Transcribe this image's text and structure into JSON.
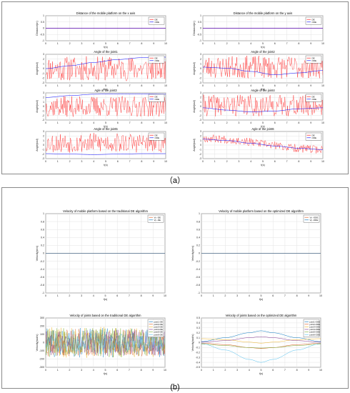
{
  "captions": {
    "a": "（a）",
    "b": "(b)"
  },
  "colors": {
    "de": "#ff0000",
    "ode": "#0000ff",
    "joint_colors": [
      "#0072bd",
      "#d95319",
      "#edb120",
      "#7e2f8e",
      "#77ac30",
      "#4dbeee"
    ]
  },
  "chart_data": [
    {
      "type": "line",
      "title": "Distance of the mobile platform on the x axis",
      "xlabel": "t(s)",
      "ylabel": "Distance(m)",
      "xlim": [
        0,
        10
      ],
      "ylim": [
        -1,
        1
      ],
      "legend_placement": "top-right",
      "grid": true,
      "x_ticks": [
        "0",
        "1",
        "2",
        "3",
        "4",
        "5",
        "6",
        "7",
        "8",
        "9",
        "10"
      ],
      "y_ticks": [
        "-1",
        "-0.5",
        "0",
        "0.5",
        "1"
      ],
      "series": [
        {
          "name": "DE",
          "kind": "const",
          "value": 0
        },
        {
          "name": "ODE",
          "kind": "const",
          "value": 0
        }
      ]
    },
    {
      "type": "line",
      "title": "Distance of the mobile platform on the y axis",
      "xlabel": "t(s)",
      "ylabel": "Distance(m)",
      "xlim": [
        0,
        10
      ],
      "ylim": [
        -1,
        1
      ],
      "legend_placement": "top-right",
      "grid": true,
      "x_ticks": [
        "0",
        "1",
        "2",
        "3",
        "4",
        "5",
        "6",
        "7",
        "8",
        "9",
        "10"
      ],
      "y_ticks": [
        "-1",
        "-0.5",
        "0",
        "0.5",
        "1"
      ],
      "series": [
        {
          "name": "DE",
          "kind": "const",
          "value": 0
        },
        {
          "name": "ODE",
          "kind": "const",
          "value": 0
        }
      ]
    },
    {
      "type": "line",
      "title": "Angle of the joint1",
      "xlabel": "t(s)",
      "ylabel": "Angle(rad)",
      "xlim": [
        0,
        10
      ],
      "ylim": [
        -3,
        3
      ],
      "legend_placement": "top-right",
      "grid": true,
      "x_ticks": [
        "0",
        "1",
        "2",
        "3",
        "4",
        "5",
        "6",
        "7",
        "8",
        "9",
        "10"
      ],
      "y_ticks": [
        "-3",
        "-2",
        "-1",
        "0",
        "1",
        "2",
        "3"
      ],
      "series": [
        {
          "name": "DE",
          "kind": "noise",
          "center": 0,
          "amp": 2.6,
          "seed": 11
        },
        {
          "name": "ODE",
          "kind": "smooth",
          "x": [
            0,
            2,
            4,
            6,
            8,
            10
          ],
          "y": [
            0,
            0.6,
            1.3,
            1.9,
            2.3,
            2.4
          ]
        }
      ]
    },
    {
      "type": "line",
      "title": "Angle of the joint2",
      "xlabel": "t(s)",
      "ylabel": "Angle(rad)",
      "xlim": [
        0,
        10
      ],
      "ylim": [
        -3,
        3
      ],
      "legend_placement": "top-right",
      "grid": true,
      "x_ticks": [
        "0",
        "1",
        "2",
        "3",
        "4",
        "5",
        "6",
        "7",
        "8",
        "9",
        "10"
      ],
      "y_ticks": [
        "-3",
        "-2",
        "-1",
        "0",
        "1",
        "2",
        "3"
      ],
      "series": [
        {
          "name": "DE",
          "kind": "noise",
          "center": 0.3,
          "amp": 2.4,
          "seed": 23
        },
        {
          "name": "ODE",
          "kind": "smooth",
          "x": [
            0,
            2,
            4,
            6,
            8,
            10
          ],
          "y": [
            0.3,
            0.1,
            -0.6,
            -1.3,
            -0.9,
            -0.4
          ]
        }
      ]
    },
    {
      "type": "line",
      "title": "Agle of the joint3",
      "xlabel": "t(s)",
      "ylabel": "Angle(rad)",
      "xlim": [
        0,
        10
      ],
      "ylim": [
        -3,
        3
      ],
      "legend_placement": "top-right",
      "grid": true,
      "x_ticks": [
        "0",
        "1",
        "2",
        "3",
        "4",
        "5",
        "6",
        "7",
        "8",
        "9",
        "10"
      ],
      "y_ticks": [
        "-3",
        "-2",
        "-1",
        "0",
        "1",
        "2",
        "3"
      ],
      "series": [
        {
          "name": "DE",
          "kind": "noise",
          "center": 0,
          "amp": 2.3,
          "seed": 37
        },
        {
          "name": "ODE",
          "kind": "smooth",
          "x": [
            0,
            2,
            4,
            6,
            8,
            10
          ],
          "y": [
            2.0,
            2.4,
            2.7,
            2.8,
            2.8,
            2.7
          ]
        }
      ]
    },
    {
      "type": "line",
      "title": "Angle of the joint4",
      "xlabel": "t(s)",
      "ylabel": "Angle(rad)",
      "xlim": [
        0,
        10
      ],
      "ylim": [
        -3,
        3
      ],
      "legend_placement": "top-right",
      "grid": true,
      "x_ticks": [
        "0",
        "1",
        "2",
        "3",
        "4",
        "5",
        "6",
        "7",
        "8",
        "9",
        "10"
      ],
      "y_ticks": [
        "-3",
        "-2",
        "-1",
        "0",
        "1",
        "2",
        "3"
      ],
      "series": [
        {
          "name": "DE",
          "kind": "noise",
          "center": 0.2,
          "amp": 2.4,
          "seed": 41
        },
        {
          "name": "ODE",
          "kind": "smooth",
          "x": [
            0,
            2,
            4,
            6,
            8,
            10
          ],
          "y": [
            -0.3,
            -0.8,
            -1.2,
            -1.0,
            -0.5,
            -0.3
          ]
        }
      ]
    },
    {
      "type": "line",
      "title": "Angle of the joint5",
      "xlabel": "t(s)",
      "ylabel": "Angle(rad)",
      "xlim": [
        0,
        10
      ],
      "ylim": [
        -3,
        3
      ],
      "legend_placement": "top-right",
      "grid": true,
      "x_ticks": [
        "0",
        "1",
        "2",
        "3",
        "4",
        "5",
        "6",
        "7",
        "8",
        "9",
        "10"
      ],
      "y_ticks": [
        "-3",
        "-2",
        "-1",
        "0",
        "1",
        "2",
        "3"
      ],
      "series": [
        {
          "name": "DE",
          "kind": "noise",
          "center": 0.5,
          "amp": 2.2,
          "seed": 53
        },
        {
          "name": "ODE",
          "kind": "smooth",
          "x": [
            0,
            2,
            4,
            6,
            8,
            10
          ],
          "y": [
            -1.9,
            -2.0,
            -2.1,
            -2.0,
            -1.9,
            -1.9
          ]
        }
      ]
    },
    {
      "type": "line",
      "title": "Agle of the joint6",
      "xlabel": "t(s)",
      "ylabel": "Angle(rad)",
      "xlim": [
        0,
        10
      ],
      "ylim": [
        -3,
        3
      ],
      "legend_placement": "top-right",
      "grid": true,
      "x_ticks": [
        "0",
        "1",
        "2",
        "3",
        "4",
        "5",
        "6",
        "7",
        "8",
        "9",
        "10"
      ],
      "y_ticks": [
        "-3",
        "-2",
        "-1",
        "0",
        "1",
        "2",
        "3"
      ],
      "series": [
        {
          "name": "DE",
          "kind": "trend-noise",
          "x": [
            0,
            10
          ],
          "y": [
            1.5,
            -1.0
          ],
          "amp": 0.9,
          "seed": 67
        },
        {
          "name": "ODE",
          "kind": "smooth",
          "x": [
            0,
            2,
            4,
            6,
            8,
            10
          ],
          "y": [
            1.3,
            1.0,
            0.4,
            -0.2,
            -0.7,
            -1.0
          ]
        }
      ]
    },
    {
      "type": "line",
      "title": "Velocity of  mobile platform based on the traditional DE algorithm",
      "xlabel": "t(s)",
      "ylabel": "Velocity(m/s)",
      "xlim": [
        0,
        10
      ],
      "ylim": [
        -1,
        1
      ],
      "legend_placement": "top-right",
      "grid": true,
      "x_ticks": [
        "0",
        "1",
        "2",
        "3",
        "4",
        "5",
        "6",
        "7",
        "8",
        "9",
        "10"
      ],
      "y_ticks": [
        "-1",
        "-0.8",
        "-0.6",
        "-0.4",
        "-0.2",
        "0",
        "0.2",
        "0.4",
        "0.6",
        "0.8",
        "1"
      ],
      "series": [
        {
          "name": "Vx -DE",
          "kind": "const",
          "value": 0,
          "color": "#d95319"
        },
        {
          "name": "Vy -DE",
          "kind": "const",
          "value": 0,
          "color": "#0072bd"
        }
      ]
    },
    {
      "type": "line",
      "title": "Velocity of  mobile platform based on the optimized DE algorithm",
      "xlabel": "t(s)",
      "ylabel": "Velocity(m/s)",
      "xlim": [
        0,
        10
      ],
      "ylim": [
        -1,
        1
      ],
      "legend_placement": "top-right",
      "grid": true,
      "x_ticks": [
        "0",
        "1",
        "2",
        "3",
        "4",
        "5",
        "6",
        "7",
        "8",
        "9",
        "10"
      ],
      "y_ticks": [
        "-1",
        "-0.8",
        "-0.6",
        "-0.4",
        "-0.2",
        "0",
        "0.2",
        "0.4",
        "0.6",
        "0.8",
        "1"
      ],
      "series": [
        {
          "name": "Vx -ODE",
          "kind": "const",
          "value": 0,
          "color": "#d95319"
        },
        {
          "name": "Vy -ODE",
          "kind": "const",
          "value": 0,
          "color": "#0072bd"
        }
      ]
    },
    {
      "type": "line",
      "title": "Velocity of joints based on the traditional DE algorithm",
      "xlabel": "t(s)",
      "ylabel": "Velocity(rad/s)",
      "xlim": [
        0,
        10
      ],
      "ylim": [
        -300,
        300
      ],
      "legend_placement": "top-right",
      "grid": true,
      "x_ticks": [
        "0",
        "1",
        "2",
        "3",
        "4",
        "5",
        "6",
        "7",
        "8",
        "9",
        "10"
      ],
      "y_ticks": [
        "-300",
        "-200",
        "-100",
        "0",
        "100",
        "200",
        "300"
      ],
      "series": [
        {
          "name": "joint1-DE",
          "kind": "noise",
          "center": 0,
          "amp": 180,
          "seed": 101,
          "color": "#0072bd"
        },
        {
          "name": "joint2-DE",
          "kind": "noise",
          "center": 0,
          "amp": 170,
          "seed": 202,
          "color": "#d95319"
        },
        {
          "name": "joint3-DE",
          "kind": "noise",
          "center": 0,
          "amp": 190,
          "seed": 303,
          "color": "#edb120"
        },
        {
          "name": "joint4-DE",
          "kind": "noise",
          "center": 0,
          "amp": 160,
          "seed": 404,
          "color": "#7e2f8e"
        },
        {
          "name": "joint5-DE",
          "kind": "noise",
          "center": 0,
          "amp": 180,
          "seed": 505,
          "color": "#77ac30"
        },
        {
          "name": "joint6-DE",
          "kind": "noise",
          "center": 0,
          "amp": 120,
          "seed": 606,
          "color": "#4dbeee"
        }
      ]
    },
    {
      "type": "line",
      "title": "Velocity of joints based on the optimized DE algorithm",
      "xlabel": "t(s)",
      "ylabel": "Velocity(rad/s)",
      "xlim": [
        0,
        10
      ],
      "ylim": [
        -0.5,
        0.5
      ],
      "legend_placement": "top-right",
      "grid": true,
      "x_ticks": [
        "0",
        "1",
        "2",
        "3",
        "4",
        "5",
        "6",
        "7",
        "8",
        "9",
        "10"
      ],
      "y_ticks": [
        "-0.5",
        "-0.4",
        "-0.3",
        "-0.2",
        "-0.1",
        "0",
        "0.1",
        "0.2",
        "0.3",
        "0.4",
        "0.5"
      ],
      "series": [
        {
          "name": "joint1-ODE",
          "kind": "smooth",
          "x": [
            0,
            2,
            4,
            5,
            6,
            8,
            10
          ],
          "y": [
            0.02,
            0.1,
            0.2,
            0.24,
            0.2,
            0.1,
            0.02
          ],
          "color": "#0072bd"
        },
        {
          "name": "joint2-ODE",
          "kind": "smooth",
          "x": [
            0,
            2,
            4,
            5,
            6,
            8,
            10
          ],
          "y": [
            -0.01,
            -0.04,
            -0.1,
            -0.12,
            -0.1,
            -0.04,
            -0.01
          ],
          "color": "#d95319"
        },
        {
          "name": "joint3-ODE",
          "kind": "smooth",
          "x": [
            0,
            2,
            4,
            5,
            6,
            8,
            10
          ],
          "y": [
            0.08,
            0.06,
            0.01,
            -0.01,
            0.01,
            0.06,
            0.08
          ],
          "color": "#edb120"
        },
        {
          "name": "joint4-ODE",
          "kind": "smooth",
          "x": [
            0,
            2,
            4,
            5,
            6,
            8,
            10
          ],
          "y": [
            0.01,
            0.04,
            0.1,
            0.12,
            0.1,
            0.04,
            0.01
          ],
          "color": "#7e2f8e"
        },
        {
          "name": "joint5-ODE",
          "kind": "smooth",
          "x": [
            0,
            2,
            4,
            5,
            6,
            8,
            10
          ],
          "y": [
            -0.03,
            -0.06,
            -0.1,
            -0.11,
            -0.1,
            -0.06,
            -0.03
          ],
          "color": "#77ac30"
        },
        {
          "name": "joint6-ODE",
          "kind": "smooth",
          "x": [
            0,
            2,
            4,
            5,
            6,
            8,
            10
          ],
          "y": [
            -0.02,
            -0.15,
            -0.34,
            -0.4,
            -0.34,
            -0.15,
            -0.02
          ],
          "color": "#4dbeee"
        }
      ]
    }
  ]
}
